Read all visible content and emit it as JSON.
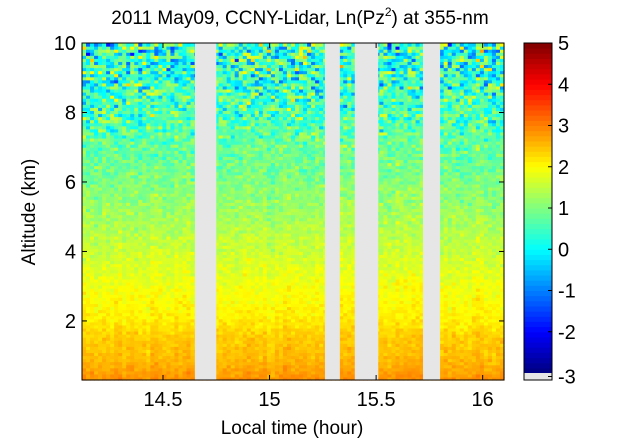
{
  "chart_data": {
    "type": "heatmap",
    "title": "2011 May09, CCNY-Lidar, Ln(Pz",
    "title_sup": "2",
    "title_suffix": ") at 355-nm",
    "xlabel": "Local time (hour)",
    "ylabel": "Altitude (km)",
    "xlim": [
      14.12,
      16.1
    ],
    "ylim": [
      0.3,
      10.0
    ],
    "xticks": [
      "14.5",
      "15",
      "15.5",
      "16"
    ],
    "xtick_values": [
      14.5,
      15.0,
      15.5,
      16.0
    ],
    "yticks": [
      "2",
      "4",
      "6",
      "8",
      "10"
    ],
    "ytick_values": [
      2,
      4,
      6,
      8,
      10
    ],
    "colorbar": {
      "range": [
        -3,
        5
      ],
      "ticks": [
        "-3",
        "-2",
        "-1",
        "0",
        "1",
        "2",
        "3",
        "4",
        "5"
      ],
      "tick_values": [
        -3,
        -2,
        -1,
        0,
        1,
        2,
        3,
        4,
        5
      ],
      "colormap": "jet",
      "missing_color": "#e6e6e6"
    },
    "missing_data_intervals_hour": [
      [
        14.65,
        14.75
      ],
      [
        15.26,
        15.33
      ],
      [
        15.4,
        15.51
      ],
      [
        15.72,
        15.8
      ]
    ],
    "profile_mean": {
      "altitude_km": [
        0.3,
        0.6,
        1.0,
        1.5,
        2.0,
        3.0,
        4.0,
        5.0,
        6.0,
        7.0,
        8.0,
        9.0,
        10.0
      ],
      "value": [
        2.9,
        2.7,
        2.5,
        2.4,
        2.15,
        1.9,
        1.6,
        1.3,
        1.0,
        0.8,
        0.6,
        0.4,
        0.3
      ]
    },
    "noise_std_by_altitude": {
      "altitude_km": [
        0.3,
        4.0,
        6.0,
        7.0,
        8.0,
        9.0,
        10.0
      ],
      "std": [
        0.12,
        0.2,
        0.3,
        0.45,
        0.8,
        1.1,
        1.3
      ]
    },
    "grid": false,
    "colors": {
      "background": "#ffffff",
      "missing": "#e6e6e6",
      "axes": "#000000"
    }
  }
}
